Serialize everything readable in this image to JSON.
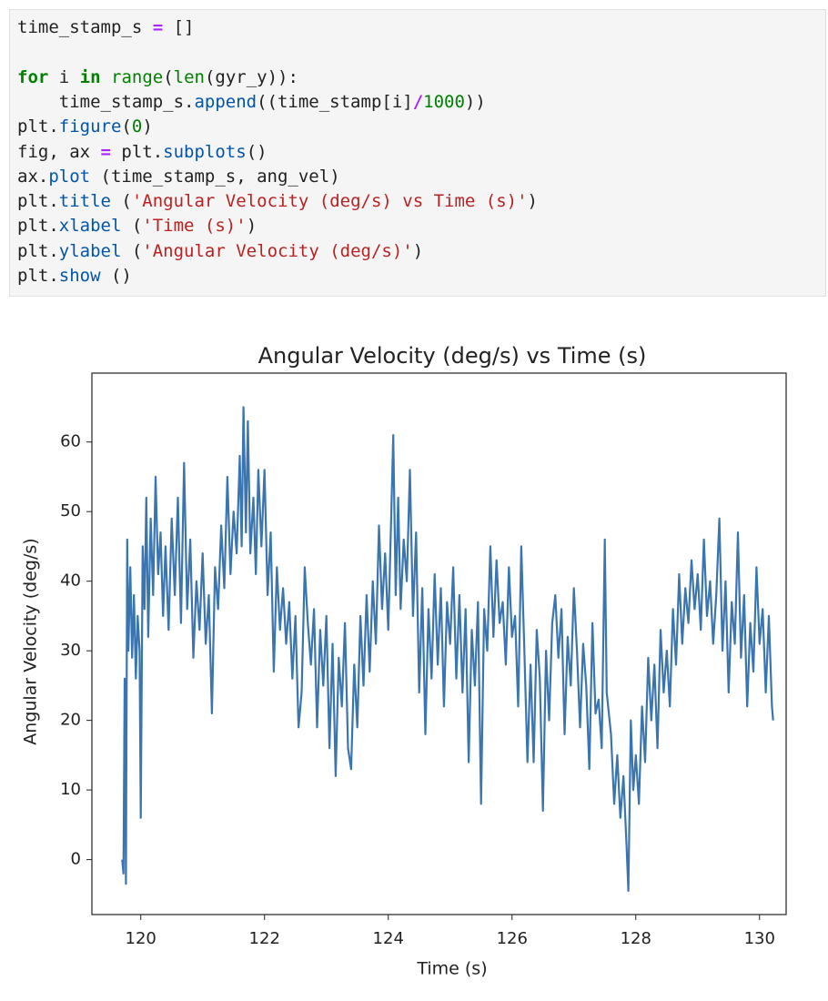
{
  "code": {
    "lines": [
      [
        "time_stamp_s ",
        "=",
        " []"
      ],
      [],
      [
        "for",
        " i ",
        "in",
        " ",
        "range",
        "(",
        "len",
        "(gyr_y)):"
      ],
      [
        "    time_stamp_s.",
        "append",
        "((time_stamp[i]",
        "/",
        "1000",
        "))"
      ],
      [
        "plt.",
        "figure",
        "(",
        "0",
        ")"
      ],
      [
        "fig, ax ",
        "=",
        " plt.",
        "subplots",
        "()"
      ],
      [
        "ax.",
        "plot",
        " (time_stamp_s, ang_vel)"
      ],
      [
        "plt.",
        "title",
        " (",
        "'Angular Velocity (deg/s) vs Time (s)'",
        ")"
      ],
      [
        "plt.",
        "xlabel",
        " (",
        "'Time (s)'",
        ")"
      ],
      [
        "plt.",
        "ylabel",
        " (",
        "'Angular Velocity (deg/s)'",
        ")"
      ],
      [
        "plt.",
        "show",
        " ()"
      ]
    ]
  },
  "chart_data": {
    "type": "line",
    "title": "Angular Velocity (deg/s) vs Time (s)",
    "x_label": "Time (s)",
    "y_label": "Angular Velocity (deg/s)",
    "xlim": [
      119.21,
      130.43
    ],
    "ylim": [
      -7.9,
      69.9
    ],
    "xticks": [
      120,
      122,
      124,
      126,
      128,
      130
    ],
    "yticks": [
      0,
      10,
      20,
      30,
      40,
      50,
      60
    ],
    "x": [
      119.7,
      119.72,
      119.74,
      119.76,
      119.78,
      119.8,
      119.83,
      119.86,
      119.89,
      119.92,
      119.95,
      119.98,
      120.0,
      120.03,
      120.06,
      120.09,
      120.12,
      120.16,
      120.2,
      120.24,
      120.28,
      120.32,
      120.36,
      120.4,
      120.45,
      120.5,
      120.55,
      120.6,
      120.65,
      120.7,
      120.75,
      120.8,
      120.85,
      120.9,
      120.95,
      121.0,
      121.05,
      121.1,
      121.15,
      121.2,
      121.25,
      121.3,
      121.35,
      121.4,
      121.45,
      121.5,
      121.55,
      121.6,
      121.63,
      121.66,
      121.7,
      121.73,
      121.77,
      121.82,
      121.86,
      121.9,
      121.95,
      122.0,
      122.05,
      122.1,
      122.15,
      122.2,
      122.25,
      122.3,
      122.35,
      122.4,
      122.45,
      122.5,
      122.55,
      122.6,
      122.65,
      122.7,
      122.75,
      122.8,
      122.85,
      122.9,
      122.95,
      123.0,
      123.05,
      123.1,
      123.15,
      123.2,
      123.25,
      123.3,
      123.35,
      123.4,
      123.45,
      123.5,
      123.55,
      123.6,
      123.65,
      123.7,
      123.75,
      123.8,
      123.85,
      123.9,
      123.95,
      124.0,
      124.05,
      124.08,
      124.12,
      124.16,
      124.2,
      124.25,
      124.3,
      124.35,
      124.4,
      124.45,
      124.5,
      124.55,
      124.6,
      124.65,
      124.7,
      124.75,
      124.8,
      124.85,
      124.9,
      124.95,
      125.0,
      125.05,
      125.1,
      125.15,
      125.2,
      125.25,
      125.3,
      125.35,
      125.4,
      125.45,
      125.5,
      125.55,
      125.6,
      125.65,
      125.7,
      125.75,
      125.8,
      125.85,
      125.9,
      125.95,
      126.0,
      126.05,
      126.1,
      126.15,
      126.2,
      126.25,
      126.3,
      126.35,
      126.4,
      126.45,
      126.5,
      126.55,
      126.6,
      126.65,
      126.7,
      126.75,
      126.8,
      126.85,
      126.9,
      126.95,
      127.0,
      127.05,
      127.1,
      127.15,
      127.2,
      127.25,
      127.3,
      127.35,
      127.4,
      127.45,
      127.5,
      127.53,
      127.6,
      127.65,
      127.7,
      127.75,
      127.8,
      127.85,
      127.88,
      127.92,
      127.96,
      128.0,
      128.05,
      128.1,
      128.15,
      128.2,
      128.25,
      128.3,
      128.35,
      128.4,
      128.45,
      128.5,
      128.55,
      128.6,
      128.65,
      128.7,
      128.75,
      128.8,
      128.85,
      128.9,
      128.95,
      129.0,
      129.05,
      129.1,
      129.15,
      129.2,
      129.25,
      129.3,
      129.35,
      129.4,
      129.45,
      129.5,
      129.55,
      129.6,
      129.65,
      129.7,
      129.75,
      129.8,
      129.85,
      129.9,
      129.95,
      130.0,
      130.05,
      130.1,
      130.15,
      130.2,
      130.22
    ],
    "series": [
      {
        "name": "ang_vel",
        "color": "#3a75b0",
        "values": [
          0,
          -2,
          26,
          -3.5,
          46,
          30,
          42,
          29,
          38,
          26,
          35,
          30,
          6,
          45,
          36,
          52,
          32,
          49,
          38,
          55,
          41,
          47,
          35,
          45,
          33,
          49,
          38,
          52,
          34,
          57,
          36,
          46,
          29,
          40,
          33,
          44,
          31,
          38,
          21,
          42,
          36,
          48,
          39,
          55,
          41,
          50,
          44,
          58,
          45,
          65,
          47,
          63,
          44,
          52,
          41,
          56,
          45,
          56,
          38,
          47,
          27,
          42,
          33,
          39,
          31,
          37,
          26,
          35,
          19,
          24,
          42,
          34,
          28,
          36,
          19,
          33,
          25,
          35,
          16,
          31,
          12,
          29,
          22,
          34,
          16,
          13,
          28,
          19,
          35,
          25,
          38,
          27,
          40,
          31,
          48,
          36,
          44,
          33,
          50,
          61,
          38,
          52,
          36,
          46,
          40,
          56,
          35,
          47,
          24,
          39,
          18,
          36,
          26,
          41,
          28,
          39,
          22,
          37,
          31,
          42,
          26,
          38,
          24,
          36,
          14,
          33,
          25,
          37,
          8,
          36,
          30,
          45,
          32,
          43,
          34,
          37,
          28,
          42,
          32,
          35,
          22,
          45,
          30,
          14,
          28,
          14,
          33,
          26,
          7,
          30,
          20,
          34,
          38,
          29,
          36,
          18,
          32,
          25,
          39,
          30,
          19,
          31,
          25,
          13,
          34,
          21,
          23,
          16,
          46,
          24,
          18,
          8,
          15,
          6,
          12,
          2,
          -4.5,
          20,
          10,
          15,
          8,
          22,
          14,
          29,
          20,
          28,
          16,
          33,
          24,
          30,
          22,
          36,
          28,
          41,
          31,
          39,
          34,
          43,
          36,
          41,
          33,
          46,
          35,
          40,
          31,
          38,
          49,
          30,
          40,
          24,
          37,
          31,
          47,
          29,
          38,
          22,
          34,
          27,
          42,
          31,
          36,
          24,
          35,
          22,
          20
        ]
      }
    ]
  }
}
